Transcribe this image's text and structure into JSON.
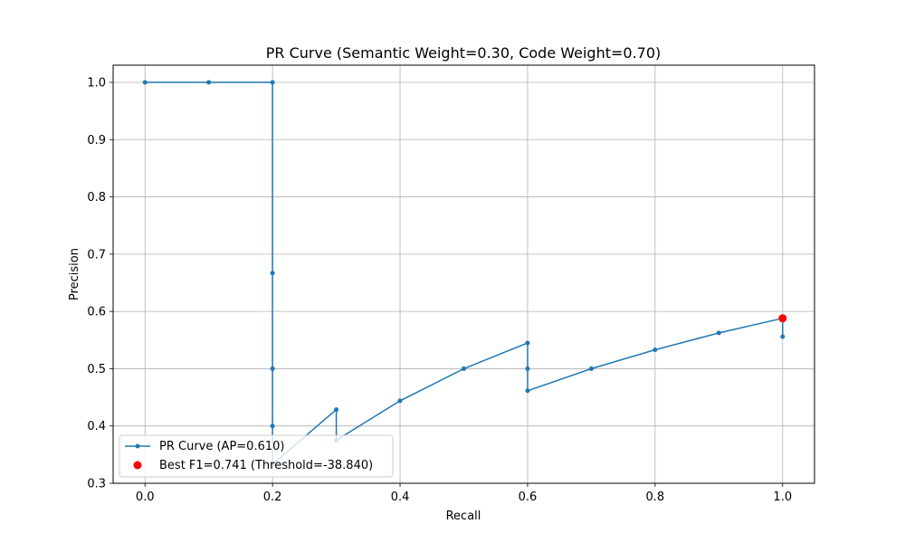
{
  "chart_data": {
    "type": "line",
    "title": "PR Curve (Semantic Weight=0.30, Code Weight=0.70)",
    "xlabel": "Recall",
    "ylabel": "Precision",
    "xlim": [
      -0.05,
      1.05
    ],
    "ylim": [
      0.3,
      1.03
    ],
    "xticks": [
      0.0,
      0.2,
      0.4,
      0.6,
      0.8,
      1.0
    ],
    "xtick_labels": [
      "0.0",
      "0.2",
      "0.4",
      "0.6",
      "0.8",
      "1.0"
    ],
    "yticks": [
      0.3,
      0.4,
      0.5,
      0.6,
      0.7,
      0.8,
      0.9,
      1.0
    ],
    "ytick_labels": [
      "0.3",
      "0.4",
      "0.5",
      "0.6",
      "0.7",
      "0.8",
      "0.9",
      "1.0"
    ],
    "grid": true,
    "legend_position": "bottom-left",
    "series": [
      {
        "name": "PR Curve (AP=0.610)",
        "color": "#1f77b4",
        "marker": "dot",
        "points": [
          [
            1.0,
            0.556
          ],
          [
            1.0,
            0.588
          ],
          [
            0.9,
            0.5625
          ],
          [
            0.8,
            0.533
          ],
          [
            0.7,
            0.5
          ],
          [
            0.6,
            0.4615
          ],
          [
            0.6,
            0.5
          ],
          [
            0.6,
            0.545
          ],
          [
            0.5,
            0.5
          ],
          [
            0.4,
            0.444
          ],
          [
            0.3,
            0.375
          ],
          [
            0.3,
            0.4286
          ],
          [
            0.2,
            0.333
          ],
          [
            0.2,
            0.4
          ],
          [
            0.2,
            0.5
          ],
          [
            0.2,
            0.667
          ],
          [
            0.2,
            1.0
          ],
          [
            0.1,
            1.0
          ],
          [
            0.0,
            1.0
          ]
        ]
      }
    ],
    "highlight": {
      "name": "Best F1=0.741 (Threshold=-38.840)",
      "color": "#ff0000",
      "point": [
        1.0,
        0.588
      ]
    }
  }
}
